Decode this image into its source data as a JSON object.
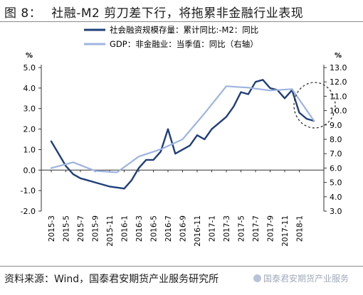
{
  "header": {
    "figure_label": "图 8：",
    "title": "社融-M2 剪刀差下行，将拖累非金融行业表现"
  },
  "footer": {
    "source": "资料来源：Wind，国泰君安期货产业服务研究所",
    "watermark": "国泰君安期货产业服务"
  },
  "chart_data": {
    "type": "line",
    "left_unit": "%",
    "right_unit": "%",
    "left_ticks": [
      "5.0",
      "4.0",
      "3.0",
      "2.0",
      "1.0",
      "0.0",
      "-1.0",
      "-2.0"
    ],
    "right_ticks": [
      "13.0",
      "12.0",
      "11.0",
      "10.0",
      "9.0",
      "8.0",
      "7.0",
      "6.0",
      "5.0",
      "4.0",
      "3.0"
    ],
    "ylim_left": [
      -2,
      5
    ],
    "ylim_right": [
      3,
      13
    ],
    "x_tick_labels": [
      "2015-3",
      "2015-5",
      "2015-7",
      "2015-9",
      "2015-11",
      "2016-1",
      "2016-3",
      "2016-5",
      "2016-7",
      "2016-9",
      "2016-11",
      "2017-1",
      "2017-3",
      "2017-5",
      "2017-7",
      "2017-9",
      "2017-11",
      "2018-1"
    ],
    "legend_position": "top-center",
    "series": [
      {
        "name": "社会融资规模存量：累计同比:-M2：同比",
        "axis": "left",
        "color": "#1f3f7a",
        "x": [
          "2015-03",
          "2015-04",
          "2015-05",
          "2015-06",
          "2015-07",
          "2015-08",
          "2015-09",
          "2015-10",
          "2015-11",
          "2015-12",
          "2016-01",
          "2016-02",
          "2016-03",
          "2016-04",
          "2016-05",
          "2016-06",
          "2016-07",
          "2016-08",
          "2016-09",
          "2016-10",
          "2016-11",
          "2016-12",
          "2017-01",
          "2017-02",
          "2017-03",
          "2017-04",
          "2017-05",
          "2017-06",
          "2017-07",
          "2017-08",
          "2017-09",
          "2017-10",
          "2017-11",
          "2017-12",
          "2018-01",
          "2018-02",
          "2018-03"
        ],
        "values": [
          1.4,
          0.8,
          0.2,
          -0.2,
          -0.4,
          -0.5,
          -0.6,
          -0.7,
          -0.8,
          -0.85,
          -0.9,
          -0.5,
          0.1,
          0.5,
          0.5,
          0.9,
          2.0,
          0.8,
          1.0,
          1.2,
          1.7,
          1.5,
          2.0,
          2.3,
          2.6,
          3.1,
          3.8,
          3.7,
          4.3,
          4.4,
          4.0,
          3.9,
          3.5,
          3.9,
          2.8,
          2.5,
          2.4
        ]
      },
      {
        "name": "GDP：非金融业：当季值：同比（右轴）",
        "axis": "right",
        "color": "#9db4e0",
        "x": [
          "2015-03",
          "2015-06",
          "2015-09",
          "2015-12",
          "2016-03",
          "2016-06",
          "2016-09",
          "2016-12",
          "2017-03",
          "2017-06",
          "2017-09",
          "2017-12",
          "2018-03"
        ],
        "values": [
          6.0,
          6.4,
          5.8,
          5.7,
          6.8,
          7.3,
          8.0,
          9.8,
          11.7,
          11.6,
          11.4,
          11.5,
          9.3
        ]
      }
    ],
    "annotation": "dashed circle highlighting the latest decline"
  }
}
